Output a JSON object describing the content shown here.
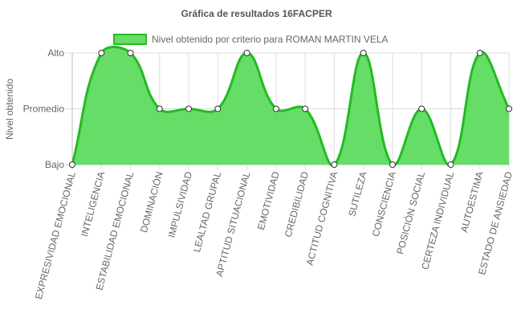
{
  "chart_data": {
    "type": "area",
    "title": "Gráfica de resultados 16FACPER",
    "ylabel": "Nivel obtenido",
    "xlabel": "",
    "y_levels": [
      "Bajo",
      "Promedio",
      "Alto"
    ],
    "ylim": [
      0,
      2
    ],
    "grid": true,
    "legend": "top",
    "categories": [
      "EXPRESIVIDAD EMOCIONAL",
      "INTELIGENCIA",
      "ESTABILIDAD EMOCIONAL",
      "DOMINACIÓN",
      "IMPULSIVIDAD",
      "LEALTAD GRUPAL",
      "APTITUD SITUACIONAL",
      "EMOTIVIDAD",
      "CREDIBILIDAD",
      "ACTITUD COGNITIVA",
      "SUTILEZA",
      "CONSCIENCIA",
      "POSICIÓN SOCIAL",
      "CERTEZA INDIVIDUAL",
      "AUTOESTIMA",
      "ESTADO DE ANSIEDAD"
    ],
    "series": [
      {
        "name": "Nivel obtenido por criterio para ROMAN MARTIN VELA",
        "values": [
          0,
          2,
          2,
          1,
          1,
          1,
          2,
          1,
          1,
          0,
          2,
          0,
          1,
          0,
          2,
          1
        ],
        "fill_color": "#66dd66",
        "line_color": "#22bb22"
      }
    ]
  }
}
